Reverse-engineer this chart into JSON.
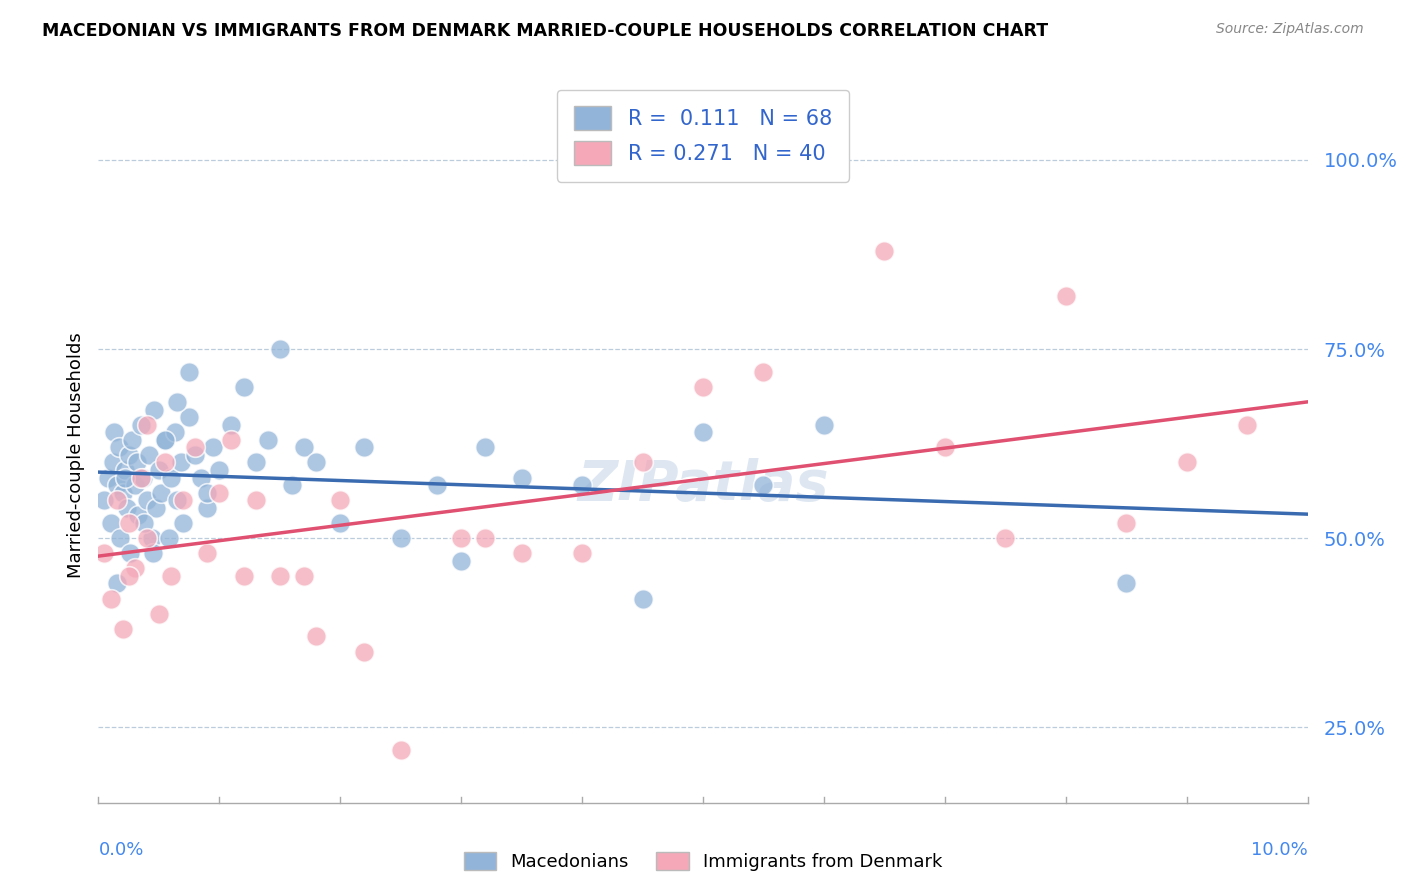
{
  "title": "MACEDONIAN VS IMMIGRANTS FROM DENMARK MARRIED-COUPLE HOUSEHOLDS CORRELATION CHART",
  "source": "Source: ZipAtlas.com",
  "ylabel": "Married-couple Households",
  "xlim": [
    0.0,
    10.0
  ],
  "ylim": [
    15.0,
    107.0
  ],
  "yticks": [
    25.0,
    50.0,
    75.0,
    100.0
  ],
  "ytick_labels": [
    "25.0%",
    "50.0%",
    "75.0%",
    "100.0%"
  ],
  "blue_color": "#92B4D8",
  "pink_color": "#F4A8B8",
  "blue_line_color": "#3A6BB0",
  "pink_line_color": "#E05070",
  "legend_R1": " 0.111",
  "legend_N1": "68",
  "legend_R2": "0.271",
  "legend_N2": "40",
  "watermark": "ZIPatlas",
  "mac_x": [
    0.05,
    0.08,
    0.1,
    0.12,
    0.13,
    0.15,
    0.17,
    0.18,
    0.2,
    0.22,
    0.24,
    0.25,
    0.26,
    0.28,
    0.3,
    0.32,
    0.33,
    0.35,
    0.37,
    0.4,
    0.42,
    0.44,
    0.46,
    0.48,
    0.5,
    0.52,
    0.55,
    0.58,
    0.6,
    0.63,
    0.65,
    0.68,
    0.7,
    0.75,
    0.8,
    0.85,
    0.9,
    0.95,
    1.0,
    1.1,
    1.2,
    1.3,
    1.4,
    1.5,
    1.6,
    1.7,
    1.8,
    2.0,
    2.2,
    2.5,
    2.8,
    3.0,
    3.2,
    3.5,
    4.0,
    4.5,
    5.0,
    5.5,
    6.0,
    8.5,
    0.15,
    0.22,
    0.38,
    0.45,
    0.55,
    0.65,
    0.75,
    0.9
  ],
  "mac_y": [
    55,
    58,
    52,
    60,
    64,
    57,
    62,
    50,
    56,
    59,
    54,
    61,
    48,
    63,
    57,
    60,
    53,
    65,
    58,
    55,
    61,
    50,
    67,
    54,
    59,
    56,
    63,
    50,
    58,
    64,
    55,
    60,
    52,
    66,
    61,
    58,
    54,
    62,
    59,
    65,
    70,
    60,
    63,
    75,
    57,
    62,
    60,
    52,
    62,
    50,
    57,
    47,
    62,
    58,
    57,
    42,
    64,
    57,
    65,
    44,
    44,
    58,
    52,
    48,
    63,
    68,
    72,
    56
  ],
  "den_x": [
    0.05,
    0.1,
    0.15,
    0.2,
    0.25,
    0.3,
    0.35,
    0.4,
    0.5,
    0.55,
    0.6,
    0.7,
    0.8,
    0.9,
    1.0,
    1.1,
    1.2,
    1.3,
    1.5,
    1.8,
    2.0,
    2.2,
    2.5,
    3.0,
    3.5,
    4.0,
    4.5,
    5.0,
    5.5,
    6.5,
    7.0,
    7.5,
    8.0,
    8.5,
    9.0,
    9.5,
    0.25,
    0.4,
    1.7,
    3.2
  ],
  "den_y": [
    48,
    42,
    55,
    38,
    52,
    46,
    58,
    50,
    40,
    60,
    45,
    55,
    62,
    48,
    56,
    63,
    45,
    55,
    45,
    37,
    55,
    35,
    22,
    50,
    48,
    48,
    60,
    70,
    72,
    88,
    62,
    50,
    82,
    52,
    60,
    65,
    45,
    65,
    45,
    50
  ]
}
